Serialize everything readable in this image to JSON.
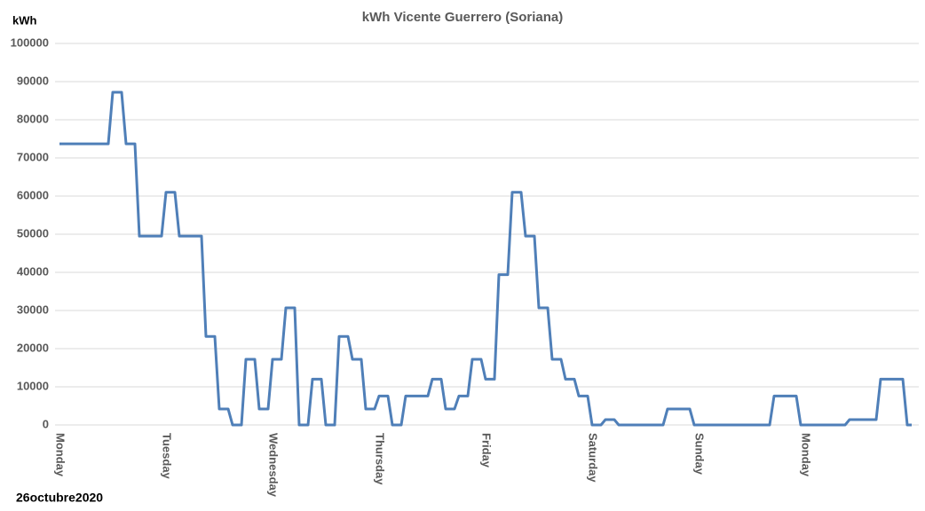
{
  "chart_data": {
    "type": "line",
    "title": "kWh Vicente Guerrero (Soriana)",
    "y_axis_label": "kWh",
    "footer": "26octubre2020",
    "categories": [
      "Monday",
      null,
      null,
      null,
      null,
      null,
      null,
      null,
      null,
      null,
      null,
      null,
      null,
      null,
      null,
      null,
      null,
      null,
      null,
      null,
      null,
      null,
      null,
      null,
      "Tuesday",
      null,
      null,
      null,
      null,
      null,
      null,
      null,
      null,
      null,
      null,
      null,
      null,
      null,
      null,
      null,
      null,
      null,
      null,
      null,
      null,
      null,
      null,
      null,
      "Wednesday",
      null,
      null,
      null,
      null,
      null,
      null,
      null,
      null,
      null,
      null,
      null,
      null,
      null,
      null,
      null,
      null,
      null,
      null,
      null,
      null,
      null,
      null,
      null,
      "Thursday",
      null,
      null,
      null,
      null,
      null,
      null,
      null,
      null,
      null,
      null,
      null,
      null,
      null,
      null,
      null,
      null,
      null,
      null,
      null,
      null,
      null,
      null,
      null,
      "Friday",
      null,
      null,
      null,
      null,
      null,
      null,
      null,
      null,
      null,
      null,
      null,
      null,
      null,
      null,
      null,
      null,
      null,
      null,
      null,
      null,
      null,
      null,
      null,
      "Saturday",
      null,
      null,
      null,
      null,
      null,
      null,
      null,
      null,
      null,
      null,
      null,
      null,
      null,
      null,
      null,
      null,
      null,
      null,
      null,
      null,
      null,
      null,
      null,
      "Sunday",
      null,
      null,
      null,
      null,
      null,
      null,
      null,
      null,
      null,
      null,
      null,
      null,
      null,
      null,
      null,
      null,
      null,
      null,
      null,
      null,
      null,
      null,
      null,
      "Monday",
      null,
      null,
      null,
      null,
      null,
      null,
      null,
      null,
      null,
      null,
      null,
      null,
      null,
      null,
      null,
      null,
      null,
      null,
      null,
      null,
      null,
      null,
      null,
      null
    ],
    "series": [
      {
        "name": "kWh",
        "color": "#4f7fb8",
        "values": [
          73700,
          73700,
          73700,
          73700,
          73700,
          73700,
          73700,
          73700,
          73700,
          73700,
          73700,
          73700,
          87200,
          87200,
          87200,
          73700,
          73700,
          73700,
          49500,
          49500,
          49500,
          49500,
          49500,
          49500,
          61000,
          61000,
          61000,
          49500,
          49500,
          49500,
          49500,
          49500,
          49500,
          23200,
          23200,
          23200,
          4200,
          4200,
          4200,
          0,
          0,
          0,
          17200,
          17200,
          17200,
          4200,
          4200,
          4200,
          17200,
          17200,
          17200,
          30700,
          30700,
          30700,
          0,
          0,
          0,
          12000,
          12000,
          12000,
          0,
          0,
          0,
          23200,
          23200,
          23200,
          17200,
          17200,
          17200,
          4200,
          4200,
          4200,
          7600,
          7600,
          7600,
          0,
          0,
          0,
          7600,
          7600,
          7600,
          7600,
          7600,
          7600,
          12000,
          12000,
          12000,
          4200,
          4200,
          4200,
          7600,
          7600,
          7600,
          17200,
          17200,
          17200,
          12000,
          12000,
          12000,
          39400,
          39400,
          39400,
          61000,
          61000,
          61000,
          49500,
          49500,
          49500,
          30700,
          30700,
          30700,
          17200,
          17200,
          17200,
          12000,
          12000,
          12000,
          7600,
          7600,
          7600,
          0,
          0,
          0,
          1400,
          1400,
          1400,
          0,
          0,
          0,
          0,
          0,
          0,
          0,
          0,
          0,
          0,
          0,
          4200,
          4200,
          4200,
          4200,
          4200,
          4200,
          0,
          0,
          0,
          0,
          0,
          0,
          0,
          0,
          0,
          0,
          0,
          0,
          0,
          0,
          0,
          0,
          0,
          0,
          7600,
          7600,
          7600,
          7600,
          7600,
          7600,
          0,
          0,
          0,
          0,
          0,
          0,
          0,
          0,
          0,
          0,
          0,
          1400,
          1400,
          1400,
          1400,
          1400,
          1400,
          1400,
          12000,
          12000,
          12000,
          12000,
          12000,
          12000,
          0,
          0
        ]
      }
    ],
    "ylim": [
      0,
      100000
    ],
    "yticks": [
      0,
      10000,
      20000,
      30000,
      40000,
      50000,
      60000,
      70000,
      80000,
      90000,
      100000
    ],
    "grid": true
  }
}
